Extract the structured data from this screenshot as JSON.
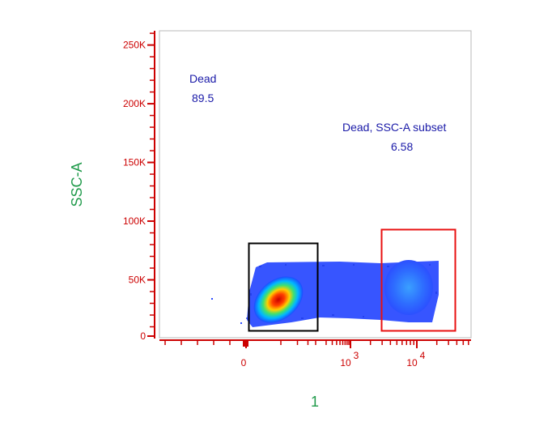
{
  "chart_data": {
    "type": "scatter",
    "subtype": "flow-cytometry-density-plot",
    "xlabel": "1",
    "ylabel": "SSC-A",
    "x_scale": "biexponential",
    "y_scale": "linear",
    "ylim": [
      0,
      262144
    ],
    "y_ticks": [
      {
        "value": 0,
        "label": "0"
      },
      {
        "value": 50000,
        "label": "50K"
      },
      {
        "value": 100000,
        "label": "100K"
      },
      {
        "value": 150000,
        "label": "150K"
      },
      {
        "value": 200000,
        "label": "200K"
      },
      {
        "value": 250000,
        "label": "250K"
      }
    ],
    "x_ticks": [
      {
        "value": 0,
        "label": "0"
      },
      {
        "value": 1000,
        "label": "10",
        "exponent": "3"
      },
      {
        "value": 10000,
        "label": "10",
        "exponent": "4"
      }
    ],
    "gates": [
      {
        "name": "Dead",
        "percent": "89.5",
        "color": "#000000",
        "x_range": [
          -20,
          600
        ],
        "y_range": [
          5000,
          81000
        ]
      },
      {
        "name": "Dead, SSC-A subset",
        "percent": "6.58",
        "color": "#e81010",
        "x_range": [
          3000,
          70000
        ],
        "y_range": [
          5000,
          92000
        ]
      }
    ],
    "colors": {
      "tick": "#cc0000",
      "label": "#1f9a4a",
      "gate_text": "#1a1aa8"
    },
    "grid": false,
    "legend": "none"
  }
}
